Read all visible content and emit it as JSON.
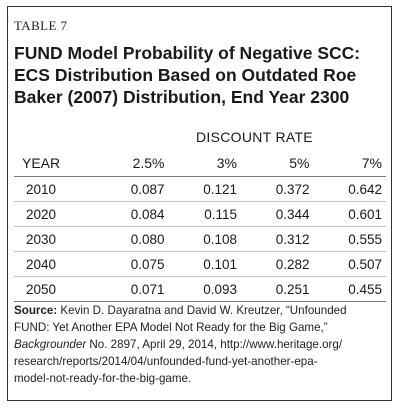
{
  "table_label": "TABLE 7",
  "title": {
    "line1": "FUND Model Probability of Negative SCC:",
    "line2": "ECS Distribution Based on Outdated Roe",
    "line3": "Baker (2007) Distribution, End Year 2300"
  },
  "group_header": "DISCOUNT RATE",
  "columns": {
    "year": "YEAR",
    "c1": "2.5%",
    "c2": "3%",
    "c3": "5%",
    "c4": "7%"
  },
  "rows": [
    {
      "year": "2010",
      "c1": "0.087",
      "c2": "0.121",
      "c3": "0.372",
      "c4": "0.642"
    },
    {
      "year": "2020",
      "c1": "0.084",
      "c2": "0.115",
      "c3": "0.344",
      "c4": "0.601"
    },
    {
      "year": "2030",
      "c1": "0.080",
      "c2": "0.108",
      "c3": "0.312",
      "c4": "0.555"
    },
    {
      "year": "2040",
      "c1": "0.075",
      "c2": "0.101",
      "c3": "0.282",
      "c4": "0.507"
    },
    {
      "year": "2050",
      "c1": "0.071",
      "c2": "0.093",
      "c3": "0.251",
      "c4": "0.455"
    }
  ],
  "source": {
    "label": "Source:",
    "line1": "Kevin D. Dayaratna and David W. Kreutzer, “Unfounded",
    "line2": "FUND: Yet Another EPA Model Not Ready for the Big Game,”",
    "line3_italic": "Backgrounder",
    "line3_rest": " No. 2897, April 29, 2014, http://www.heritage.org/",
    "line4": "research/reports/2014/04/unfounded-fund-yet-another-epa-",
    "line5": "model-not-ready-for-the-big-game."
  }
}
